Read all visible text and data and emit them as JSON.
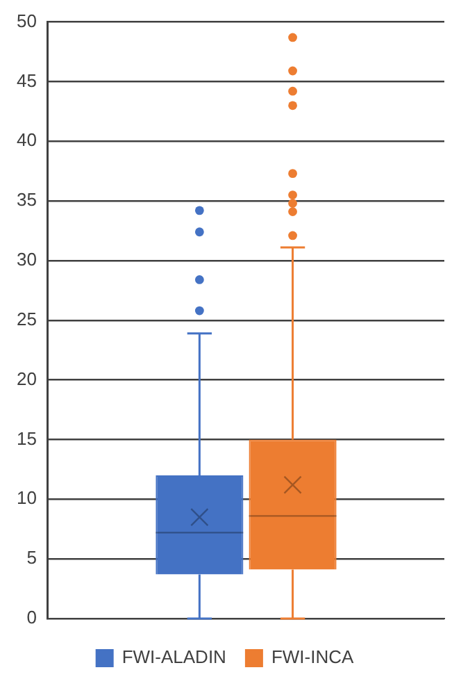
{
  "chart_data": {
    "type": "box",
    "categories": [
      null
    ],
    "series": [
      {
        "name": "FWI-ALADIN",
        "color": "#4472c4",
        "boxes": [
          {
            "low": 0,
            "q1": 3.7,
            "median": 7.2,
            "q3": 12.0,
            "high": 23.9,
            "mean": 8.5,
            "outliers": [
              25.8,
              28.4,
              32.4,
              34.2
            ]
          }
        ]
      },
      {
        "name": "FWI-INCA",
        "color": "#ed7d31",
        "boxes": [
          {
            "low": 0,
            "q1": 4.1,
            "median": 8.6,
            "q3": 15.0,
            "high": 31.1,
            "mean": 11.2,
            "outliers": [
              32.1,
              34.1,
              34.8,
              35.5,
              37.3,
              43.0,
              44.2,
              45.9,
              48.7
            ]
          }
        ]
      }
    ],
    "ylim": [
      0,
      50
    ],
    "yticks": [
      0,
      5,
      10,
      15,
      20,
      25,
      30,
      35,
      40,
      45,
      50
    ],
    "grid": "y",
    "legend": "bottom",
    "tick_labels": "y"
  }
}
